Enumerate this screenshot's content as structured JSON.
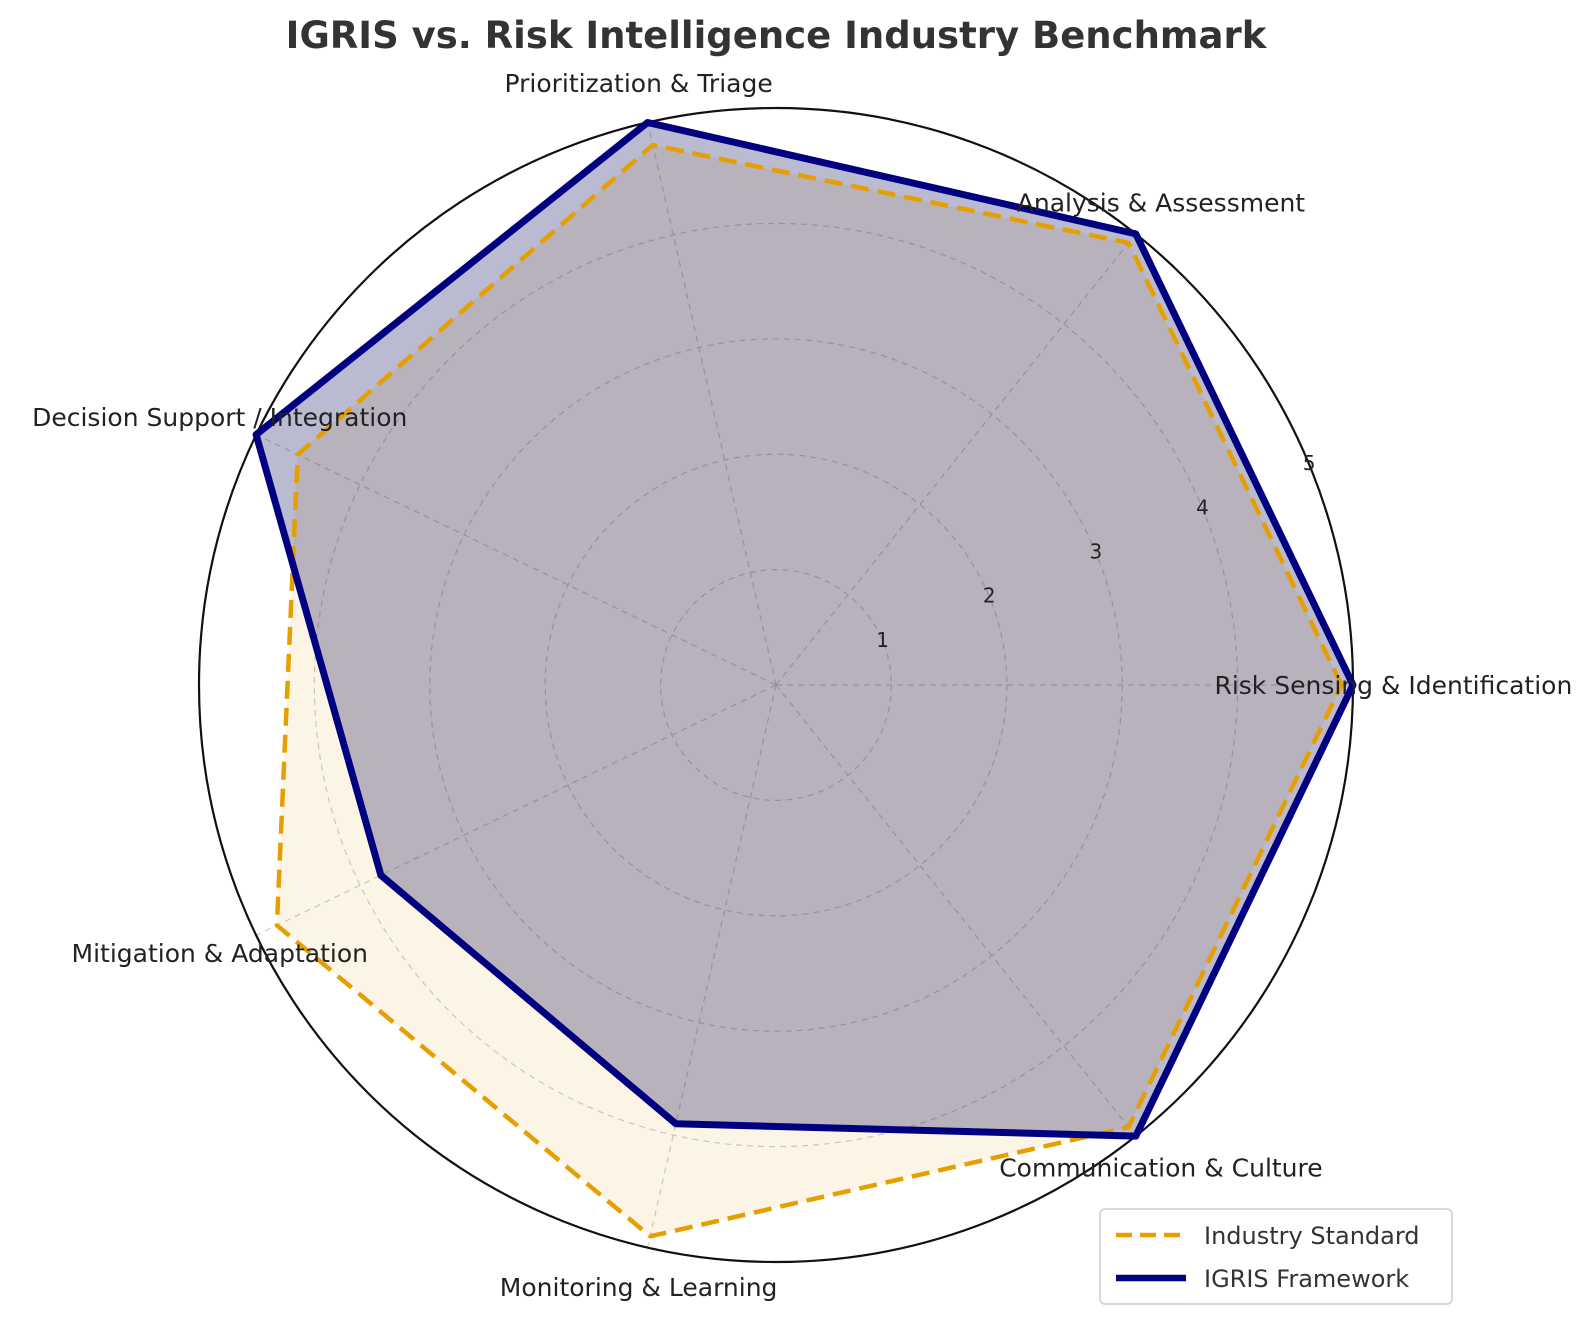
{
  "chart_data": {
    "type": "radar",
    "title": "IGRIS vs. Risk Intelligence Industry Benchmark",
    "categories": [
      "Risk Sensing & Identification",
      "Analysis & Assessment",
      "Prioritization & Triage",
      "Decision Support / Integration",
      "Mitigation & Adaptation",
      "Monitoring & Learning",
      "Communication & Culture"
    ],
    "radial_ticks": [
      "1",
      "2",
      "3",
      "4",
      "5"
    ],
    "rlim": [
      0,
      5
    ],
    "grid": true,
    "legend_position": "lower-right",
    "series": [
      {
        "name": "Industry Standard",
        "values": [
          4.9,
          4.9,
          4.8,
          4.6,
          4.8,
          4.9,
          4.9
        ],
        "color": "#E69F00",
        "line_style": "dashed"
      },
      {
        "name": "IGRIS Framework",
        "values": [
          5.0,
          5.0,
          5.0,
          5.0,
          3.8,
          3.9,
          5.0
        ],
        "color": "#000080",
        "line_style": "solid"
      }
    ]
  }
}
